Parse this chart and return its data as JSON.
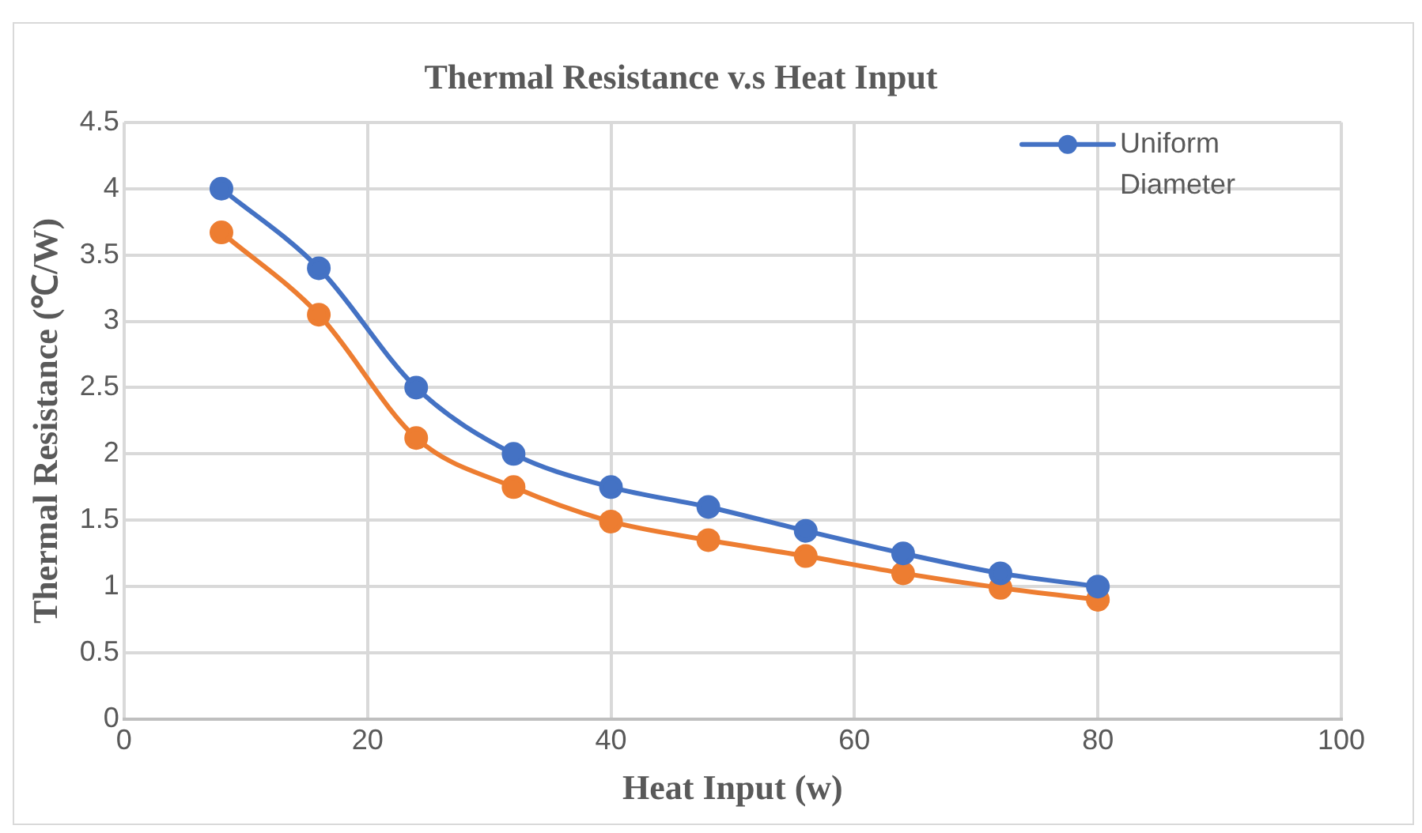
{
  "chart_data": {
    "type": "line",
    "title": "Thermal Resistance v.s Heat Input",
    "xlabel": "Heat Input (w)",
    "ylabel": "Thermal Resistance (℃/W)",
    "x": [
      8,
      16,
      24,
      32,
      40,
      48,
      56,
      64,
      72,
      80
    ],
    "series": [
      {
        "name": "Uniform Diameter",
        "color": "#4472c4",
        "values": [
          4.0,
          3.4,
          2.5,
          2.0,
          1.75,
          1.6,
          1.42,
          1.25,
          1.1,
          1.0
        ]
      },
      {
        "color": "#ed7d31",
        "values": [
          3.67,
          3.05,
          2.12,
          1.75,
          1.49,
          1.35,
          1.23,
          1.1,
          0.99,
          0.9
        ]
      }
    ],
    "xlim": [
      0,
      100
    ],
    "xticks": [
      0,
      20,
      40,
      60,
      80,
      100
    ],
    "ylim": [
      0,
      4.5
    ],
    "yticks": [
      0,
      0.5,
      1,
      1.5,
      2,
      2.5,
      3,
      3.5,
      4,
      4.5
    ],
    "grid": true,
    "legend": "top right",
    "marker": "circle",
    "line_style": "solid"
  }
}
